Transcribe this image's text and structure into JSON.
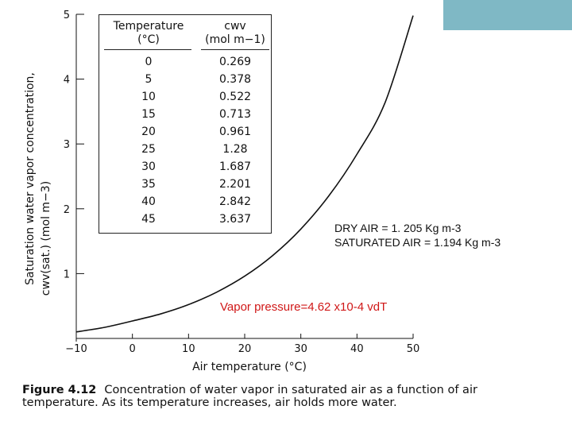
{
  "chart_data": {
    "type": "line",
    "title": "",
    "xlabel": "Air temperature (°C)",
    "ylabel_line1": "Saturation water vapor concentration,",
    "ylabel_line2": "cwv(sat.) (mol m−3)",
    "xlim": [
      -10,
      50
    ],
    "ylim": [
      0,
      5
    ],
    "x_ticks": [
      "−10",
      "0",
      "10",
      "20",
      "30",
      "40",
      "50"
    ],
    "y_ticks": [
      "1",
      "2",
      "3",
      "4",
      "5"
    ],
    "grid": false,
    "series": [
      {
        "x": [
          -10,
          -5,
          0,
          5,
          10,
          15,
          20,
          25,
          30,
          35,
          40,
          45,
          50
        ],
        "y": [
          0.1,
          0.17,
          0.269,
          0.378,
          0.522,
          0.713,
          0.961,
          1.28,
          1.687,
          2.201,
          2.842,
          3.637,
          4.98
        ]
      }
    ]
  },
  "table": {
    "col1_header_line1": "Temperature",
    "col1_header_line2": "(°C)",
    "col2_header_line1": "cwv",
    "col2_header_line2": "(mol m−1)",
    "rows": [
      {
        "t": "0",
        "c": "0.269"
      },
      {
        "t": "5",
        "c": "0.378"
      },
      {
        "t": "10",
        "c": "0.522"
      },
      {
        "t": "15",
        "c": "0.713"
      },
      {
        "t": "20",
        "c": "0.961"
      },
      {
        "t": "25",
        "c": "1.28"
      },
      {
        "t": "30",
        "c": "1.687"
      },
      {
        "t": "35",
        "c": "2.201"
      },
      {
        "t": "40",
        "c": "2.842"
      },
      {
        "t": "45",
        "c": "3.637"
      }
    ]
  },
  "notes": {
    "dry_air": "DRY AIR = 1. 205 Kg m-3",
    "saturated_air": "SATURATED AIR = 1.194 Kg m-3",
    "vapor_pressure": "Vapor pressure=4.62 x10-4 vdT"
  },
  "caption": {
    "figure": "Figure 4.12",
    "text": "Concentration of water vapor in saturated air as a function of air temperature. As its temperature increases, air holds more water."
  },
  "colors": {
    "accent_box": "#7fb8c5",
    "vapor_text": "#d01818",
    "line": "#111111"
  }
}
